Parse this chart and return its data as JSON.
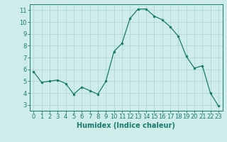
{
  "x": [
    0,
    1,
    2,
    3,
    4,
    5,
    6,
    7,
    8,
    9,
    10,
    11,
    12,
    13,
    14,
    15,
    16,
    17,
    18,
    19,
    20,
    21,
    22,
    23
  ],
  "y": [
    5.8,
    4.9,
    5.0,
    5.1,
    4.8,
    3.9,
    4.5,
    4.2,
    3.9,
    5.0,
    7.5,
    8.2,
    10.3,
    11.1,
    11.1,
    10.5,
    10.2,
    9.6,
    8.8,
    7.1,
    6.1,
    6.3,
    4.0,
    2.9
  ],
  "xlim": [
    -0.5,
    23.5
  ],
  "ylim": [
    2.5,
    11.5
  ],
  "xticks": [
    0,
    1,
    2,
    3,
    4,
    5,
    6,
    7,
    8,
    9,
    10,
    11,
    12,
    13,
    14,
    15,
    16,
    17,
    18,
    19,
    20,
    21,
    22,
    23
  ],
  "yticks": [
    3,
    4,
    5,
    6,
    7,
    8,
    9,
    10,
    11
  ],
  "xlabel": "Humidex (Indice chaleur)",
  "line_color": "#1a7a6e",
  "marker_color": "#1a7a6e",
  "bg_color": "#ceecea",
  "grid_color": "#afd8d4",
  "axis_color": "#1a7a6e",
  "tick_label_color": "#1a7a6e",
  "xlabel_color": "#1a7a6e",
  "xlabel_fontsize": 7,
  "tick_fontsize": 6
}
